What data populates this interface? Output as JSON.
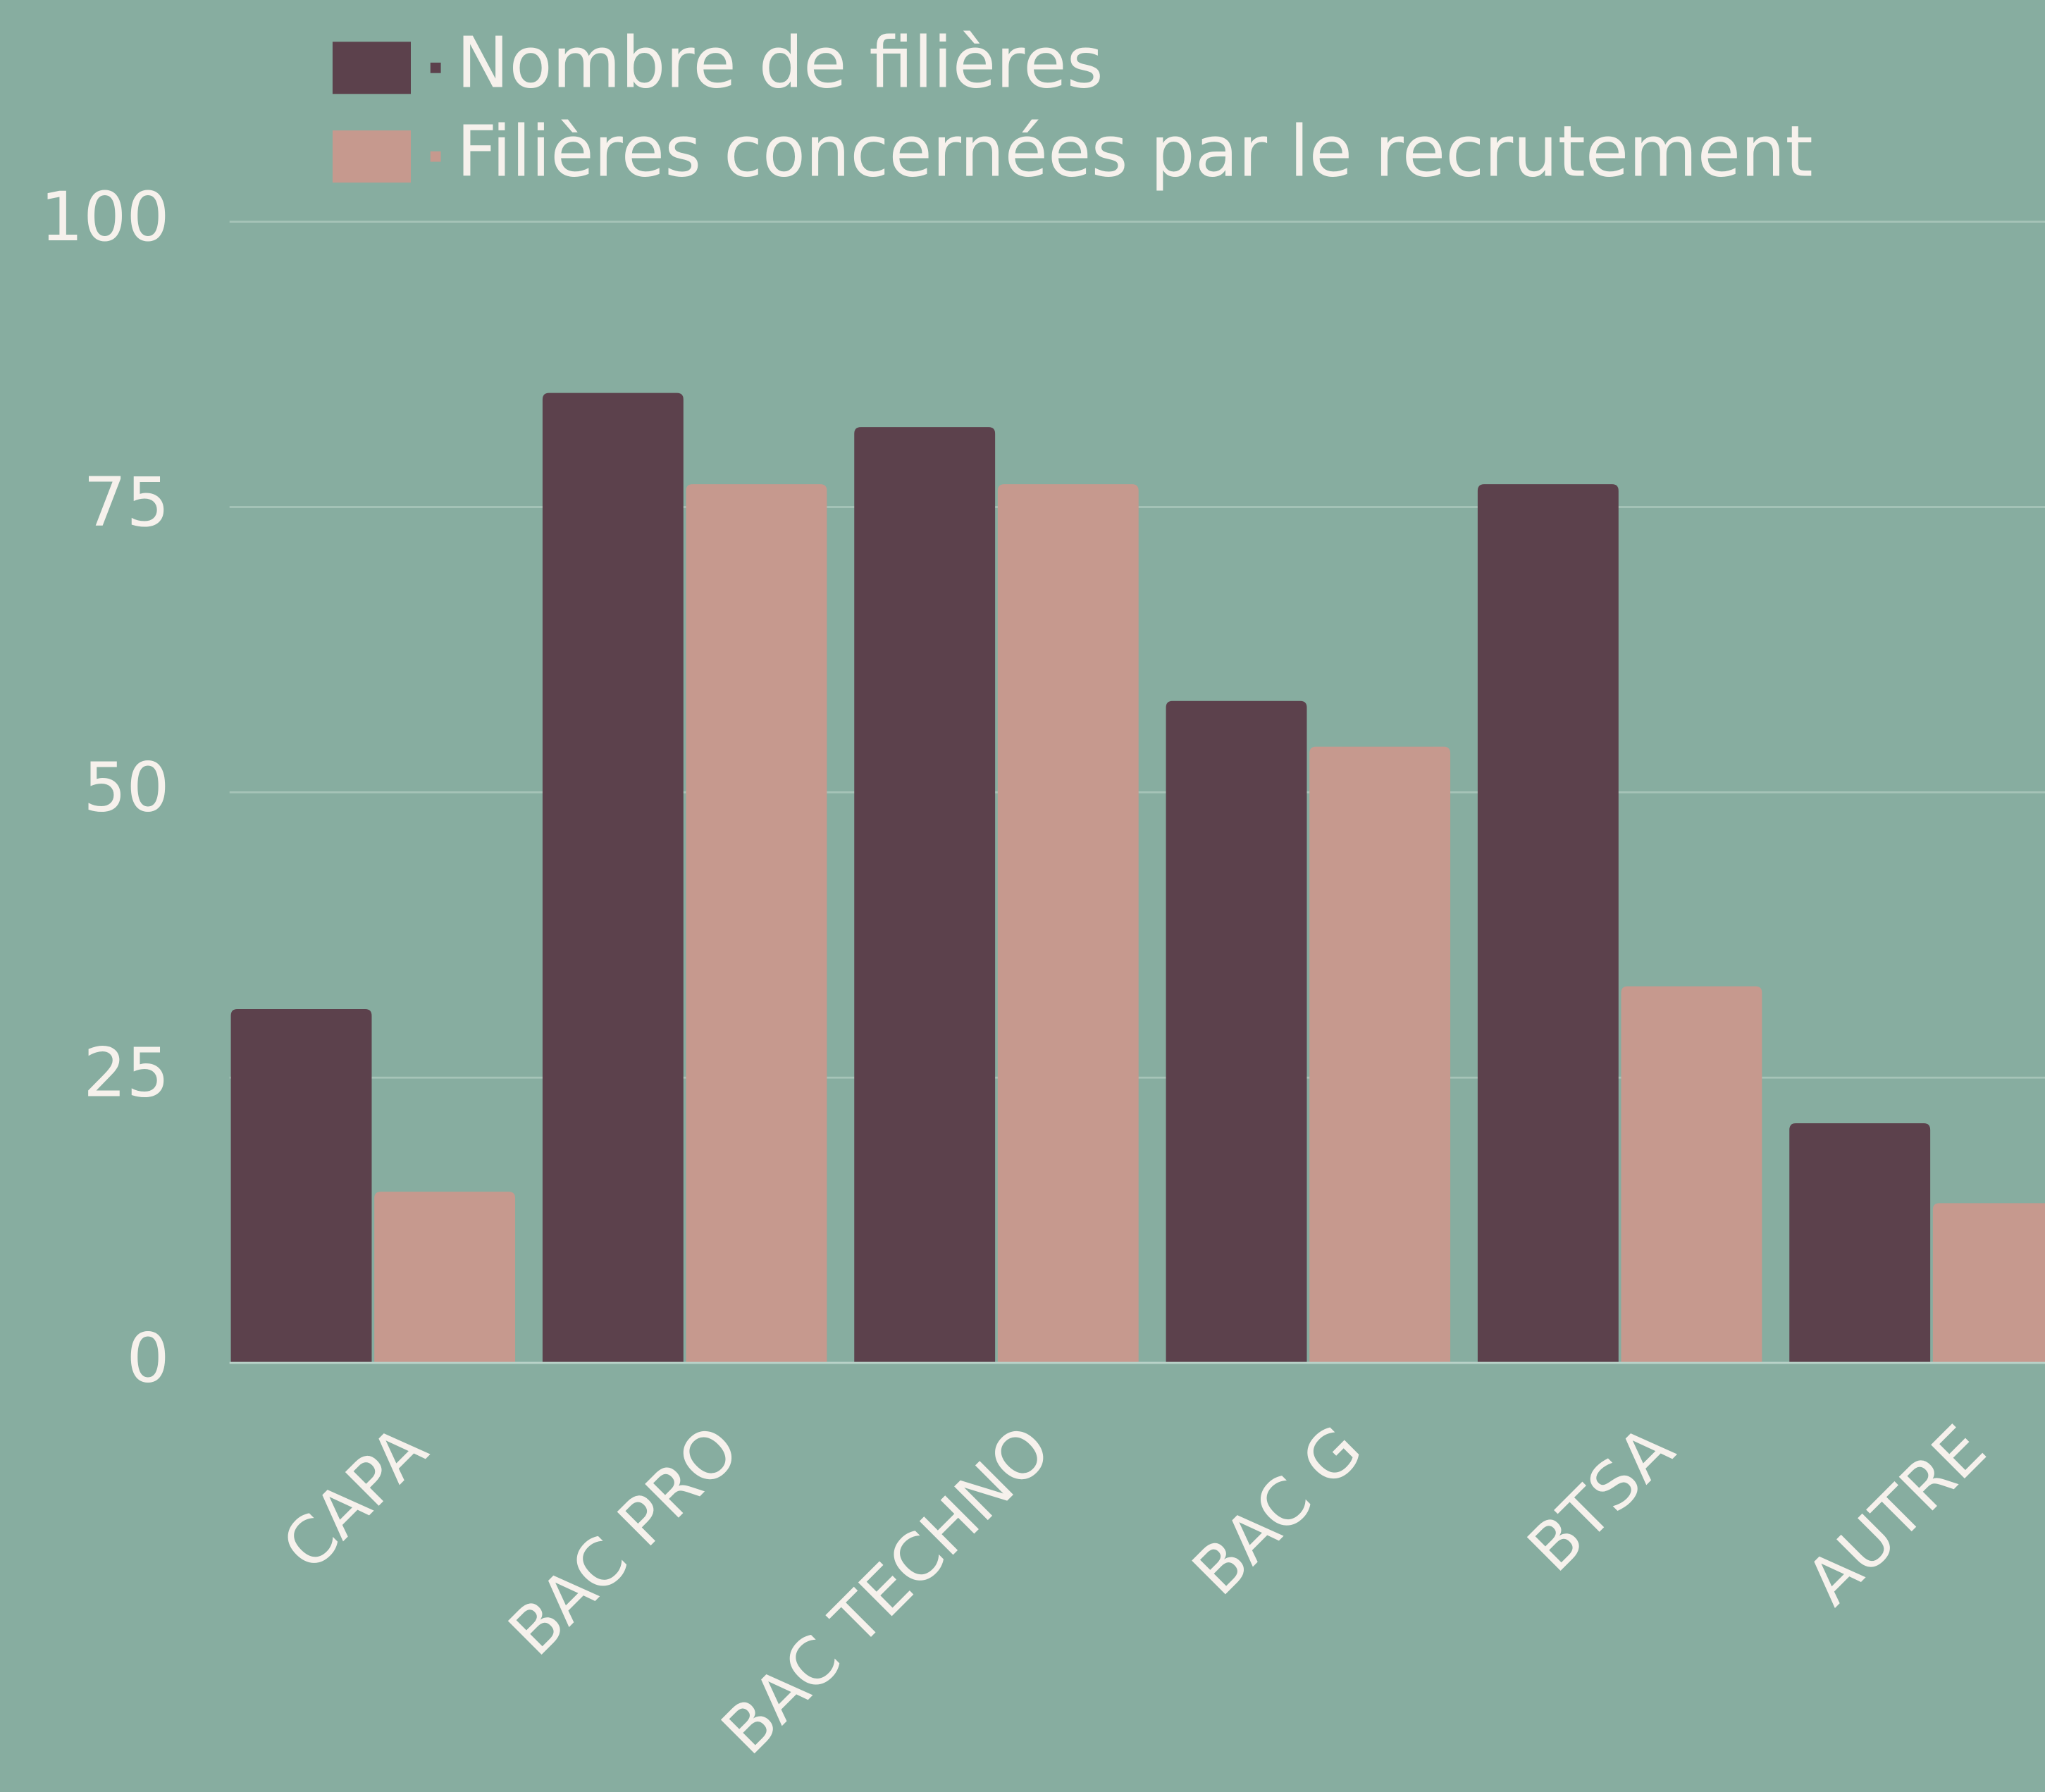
{
  "chart_data": {
    "type": "bar",
    "categories": [
      "CAPA",
      "BAC PRO",
      "BAC TECHNO",
      "BAC G",
      "BTSA",
      "AUTRE"
    ],
    "series": [
      {
        "name": "Nombre de filières",
        "color": "#5c414c",
        "values": [
          31,
          85,
          82,
          58,
          77,
          21
        ]
      },
      {
        "name": "Filières concernées par le recrutement",
        "color": "#c6998e",
        "values": [
          15,
          77,
          77,
          54,
          33,
          14
        ]
      }
    ],
    "ylim": [
      0,
      100
    ],
    "yticks": [
      0,
      25,
      50,
      75,
      100
    ],
    "grid": true,
    "legend": "top-left"
  }
}
